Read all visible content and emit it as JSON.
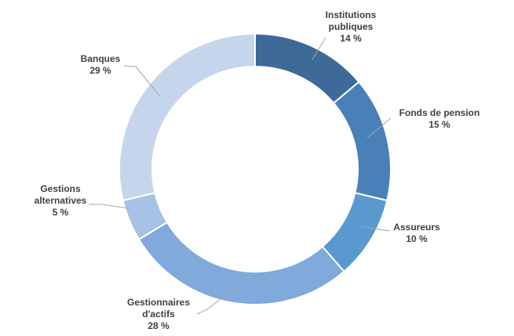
{
  "chart_data": {
    "type": "pie",
    "donut": true,
    "title": "",
    "legend": "none",
    "slices": [
      {
        "label_lines": [
          "Institutions",
          "publiques"
        ],
        "value": 14,
        "value_label": "14 %",
        "color": "#3d6a99"
      },
      {
        "label_lines": [
          "Fonds de pension"
        ],
        "value": 15,
        "value_label": "15 %",
        "color": "#4a80b8"
      },
      {
        "label_lines": [
          "Assureurs"
        ],
        "value": 10,
        "value_label": "10 %",
        "color": "#5a98d0"
      },
      {
        "label_lines": [
          "Gestionnaires",
          "d'actifs"
        ],
        "value": 28,
        "value_label": "28 %",
        "color": "#7faadb"
      },
      {
        "label_lines": [
          "Gestions",
          "alternatives"
        ],
        "value": 5,
        "value_label": "5 %",
        "color": "#a6c2e6"
      },
      {
        "label_lines": [
          "Banques"
        ],
        "value": 29,
        "value_label": "29 %",
        "color": "#c5d5ec"
      }
    ]
  }
}
